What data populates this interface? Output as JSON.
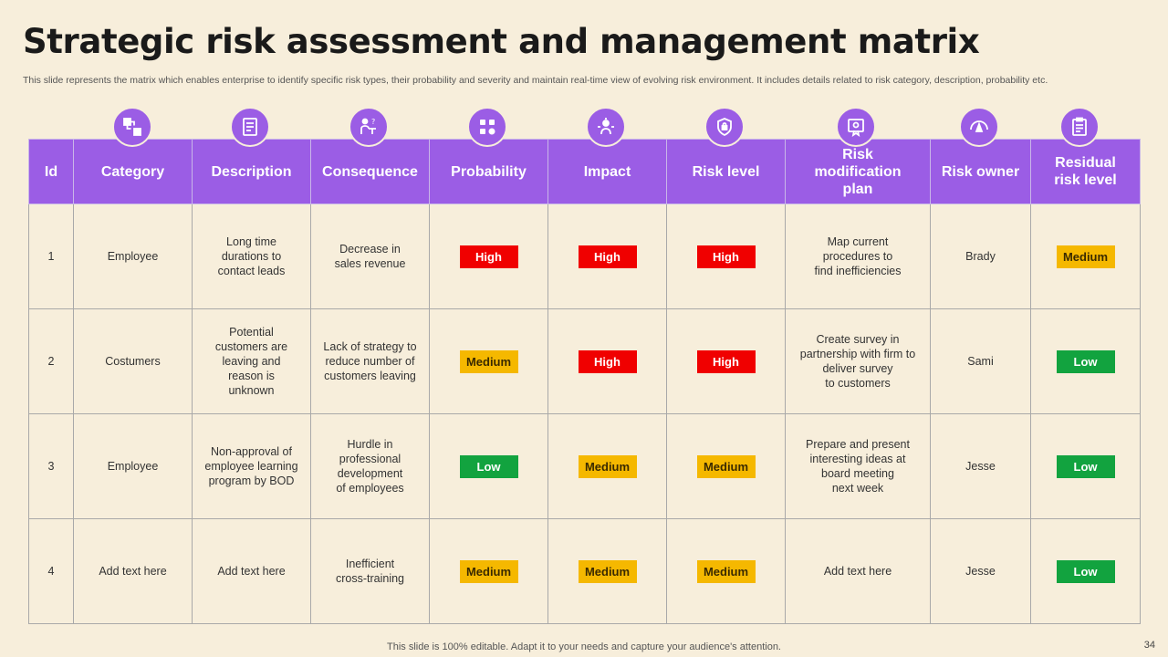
{
  "header": {
    "title": "Strategic risk assessment and management matrix",
    "subtitle": "This slide represents the matrix which enables enterprise to identify specific risk types, their probability and severity and maintain real-time view of evolving risk environment. It includes details related to risk category, description, probability etc."
  },
  "colors": {
    "header_bg": "#9b5de5",
    "background": "#f7eedb",
    "high": "#f00000",
    "medium": "#f5b800",
    "low": "#12a33f"
  },
  "icons": [
    "workflow-icon",
    "document-icon",
    "presenter-icon",
    "question-grid-icon",
    "target-person-icon",
    "shield-lock-icon",
    "certificate-icon",
    "risk-gauge-icon",
    "clipboard-icon"
  ],
  "table": {
    "columns": [
      "Id",
      "Category",
      "Description",
      "Consequence",
      "Probability",
      "Impact",
      "Risk level",
      "Risk modification plan",
      "Risk owner",
      "Residual risk level"
    ],
    "rows": [
      {
        "id": "1",
        "category": "Employee",
        "description": "Long time\ndurations to\ncontact leads",
        "consequence": "Decrease in\nsales revenue",
        "probability": "High",
        "impact": "High",
        "risk_level": "High",
        "plan": "Map current\nprocedures to\nfind inefficiencies",
        "owner": "Brady",
        "residual": "Medium"
      },
      {
        "id": "2",
        "category": "Costumers",
        "description": "Potential\ncustomers are\nleaving and\nreason is\nunknown",
        "consequence": "Lack of strategy to\nreduce number of\ncustomers leaving",
        "probability": "Medium",
        "impact": "High",
        "risk_level": "High",
        "plan": "Create survey in\npartnership with firm to\ndeliver survey\nto customers",
        "owner": "Sami",
        "residual": "Low"
      },
      {
        "id": "3",
        "category": "Employee",
        "description": "Non-approval of\nemployee learning\nprogram by BOD",
        "consequence": "Hurdle in\nprofessional\ndevelopment\nof employees",
        "probability": "Low",
        "impact": "Medium",
        "risk_level": "Medium",
        "plan": "Prepare and present\ninteresting ideas at\nboard meeting\nnext week",
        "owner": "Jesse",
        "residual": "Low"
      },
      {
        "id": "4",
        "category": "Add text here",
        "description": "Add text here",
        "consequence": "Inefficient\ncross-training",
        "probability": "Medium",
        "impact": "Medium",
        "risk_level": "Medium",
        "plan": "Add text here",
        "owner": "Jesse",
        "residual": "Low"
      }
    ]
  },
  "footer": {
    "note": "This slide is 100% editable. Adapt it to your needs and capture your audience's attention.",
    "page_number": "34"
  }
}
